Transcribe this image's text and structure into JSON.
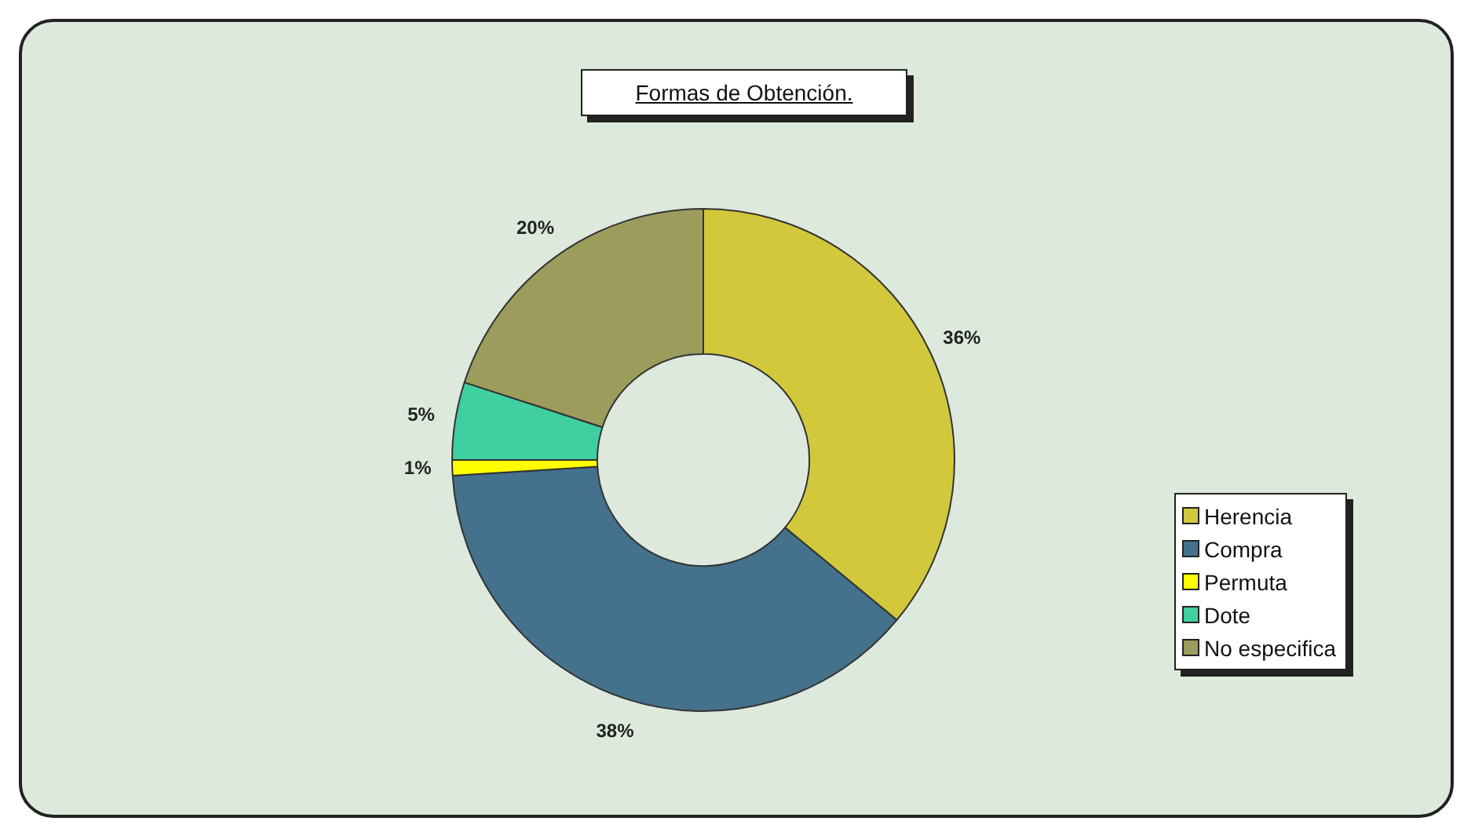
{
  "chart_data": {
    "type": "donut",
    "title": "Formas de Obtención.",
    "categories": [
      "Herencia",
      "Compra",
      "Permuta",
      "Dote",
      "No especifica"
    ],
    "values": [
      36,
      38,
      1,
      5,
      20
    ],
    "colors": [
      "#d2c83c",
      "#44718c",
      "#ffff00",
      "#3fcfa0",
      "#9c9c5c"
    ],
    "value_labels": [
      "36%",
      "38%",
      "1%",
      "5%",
      "20%"
    ],
    "legend": "right"
  }
}
